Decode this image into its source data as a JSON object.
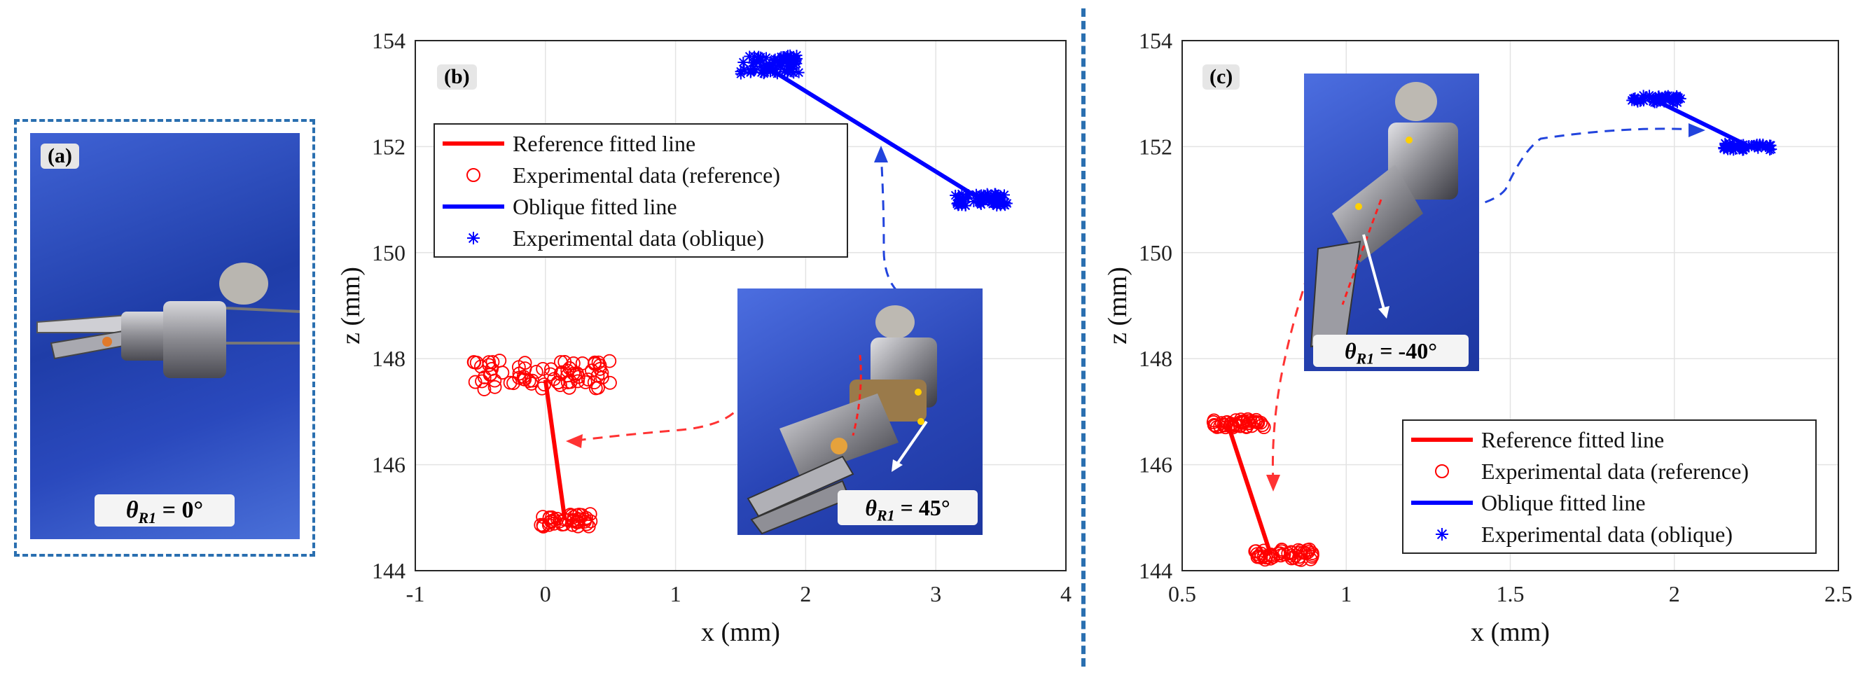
{
  "panel_a": {
    "tag": "(a)",
    "theta_label": "θ",
    "theta_sub": "R1",
    "theta_value": "= 0°"
  },
  "panel_b": {
    "tag": "(b)",
    "theta_label": "θ",
    "theta_sub": "R1",
    "theta_value": "= 45°"
  },
  "panel_c": {
    "tag": "(c)",
    "theta_label": "θ",
    "theta_sub": "R1",
    "theta_value": "= -40°"
  },
  "legend": {
    "ref_line": "Reference fitted line",
    "ref_data": "Experimental data (reference)",
    "obl_line": "Oblique fitted line",
    "obl_data": "Experimental data (oblique)"
  },
  "colors": {
    "reference": "#ff0000",
    "oblique": "#0000ff",
    "divider": "#2a6fb0",
    "grid": "#e3e3e3"
  },
  "chart_data": [
    {
      "type": "scatter",
      "panel": "(b)",
      "xlabel": "x (mm)",
      "ylabel": "z (mm)",
      "xlim": [
        -1,
        4
      ],
      "ylim": [
        144,
        154
      ],
      "xticks": [
        "-1",
        "0",
        "1",
        "2",
        "3",
        "4"
      ],
      "yticks": [
        "144",
        "146",
        "148",
        "150",
        "152",
        "154"
      ],
      "grid": true,
      "legend_position": "upper-left",
      "series": [
        {
          "name": "Reference fitted line",
          "kind": "line",
          "x": [
            0.0,
            0.15
          ],
          "y": [
            147.6,
            144.95
          ]
        },
        {
          "name": "Experimental data (reference)",
          "kind": "scatter-circle",
          "clusters": [
            {
              "x_range": [
                -0.55,
                0.5
              ],
              "y_center": 147.7,
              "y_spread": 0.28,
              "n": 75
            },
            {
              "x_range": [
                -0.05,
                0.35
              ],
              "y_center": 144.95,
              "y_spread": 0.12,
              "n": 40
            }
          ]
        },
        {
          "name": "Oblique fitted line",
          "kind": "line",
          "x": [
            1.7,
            3.35
          ],
          "y": [
            153.5,
            151.0
          ]
        },
        {
          "name": "Experimental data (oblique)",
          "kind": "scatter-star",
          "clusters": [
            {
              "x_range": [
                1.5,
                1.95
              ],
              "y_center": 153.55,
              "y_spread": 0.18,
              "n": 70
            },
            {
              "x_range": [
                3.15,
                3.55
              ],
              "y_center": 151.0,
              "y_spread": 0.12,
              "n": 60
            }
          ]
        }
      ]
    },
    {
      "type": "scatter",
      "panel": "(c)",
      "xlabel": "x (mm)",
      "ylabel": "z (mm)",
      "xlim": [
        0.5,
        2.5
      ],
      "ylim": [
        144,
        154
      ],
      "xticks": [
        "0.5",
        "1",
        "1.5",
        "2",
        "2.5"
      ],
      "yticks": [
        "144",
        "146",
        "148",
        "150",
        "152",
        "154"
      ],
      "grid": true,
      "legend_position": "lower-right",
      "series": [
        {
          "name": "Reference fitted line",
          "kind": "line",
          "x": [
            0.64,
            0.77
          ],
          "y": [
            146.75,
            144.3
          ]
        },
        {
          "name": "Experimental data (reference)",
          "kind": "scatter-circle",
          "clusters": [
            {
              "x_range": [
                0.58,
                0.75
              ],
              "y_center": 146.78,
              "y_spread": 0.08,
              "n": 45
            },
            {
              "x_range": [
                0.72,
                0.9
              ],
              "y_center": 144.3,
              "y_spread": 0.1,
              "n": 45
            }
          ]
        },
        {
          "name": "Oblique fitted line",
          "kind": "line",
          "x": [
            1.95,
            2.23
          ],
          "y": [
            152.85,
            152.0
          ]
        },
        {
          "name": "Experimental data (oblique)",
          "kind": "scatter-star",
          "clusters": [
            {
              "x_range": [
                1.87,
                2.02
              ],
              "y_center": 152.9,
              "y_spread": 0.07,
              "n": 45
            },
            {
              "x_range": [
                2.15,
                2.3
              ],
              "y_center": 152.0,
              "y_spread": 0.07,
              "n": 45
            }
          ]
        }
      ]
    }
  ]
}
